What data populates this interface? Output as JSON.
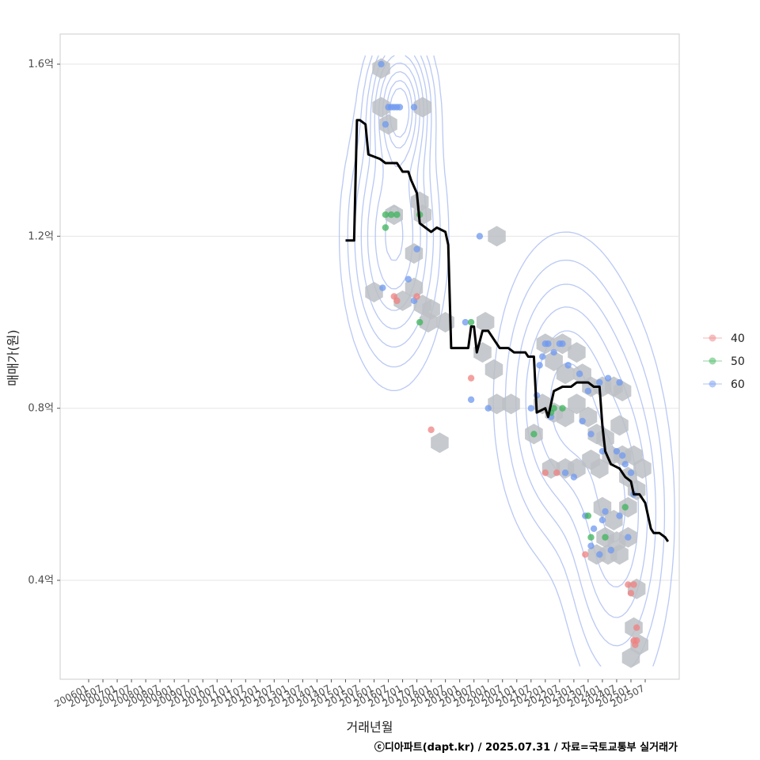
{
  "chart_data": {
    "type": "scatter",
    "xlabel": "거래년월",
    "ylabel": "매매가(원)",
    "caption": "ⓒ디아파트(dapt.kr) / 2025.07.31 / 자료=국토교통부 실거래가",
    "x_ticks": [
      "200601",
      "200607",
      "200701",
      "200707",
      "200801",
      "200807",
      "200901",
      "200907",
      "201001",
      "201007",
      "201101",
      "201107",
      "201201",
      "201207",
      "201301",
      "201307",
      "201401",
      "201407",
      "201501",
      "201507",
      "201601",
      "201607",
      "201701",
      "201707",
      "201801",
      "201807",
      "201901",
      "201907",
      "202001",
      "202007",
      "202101",
      "202107",
      "202201",
      "202207",
      "202301",
      "202307",
      "202401",
      "202407",
      "202501",
      "202507"
    ],
    "y_ticks": [
      {
        "value": 0.4,
        "label": "0.4억"
      },
      {
        "value": 0.8,
        "label": "0.8억"
      },
      {
        "value": 1.2,
        "label": "1.2억"
      },
      {
        "value": 1.6,
        "label": "1.6억"
      }
    ],
    "ylim": [
      0.17,
      1.67
    ],
    "grid": true,
    "legend_position": "right",
    "colors": {
      "40": "#f08080",
      "50": "#3cb35a",
      "60": "#6f98ef",
      "line": "#000000",
      "hex": "#bcc0c4",
      "contour": "#aebff2"
    },
    "legend": [
      {
        "key": "40",
        "label": "40",
        "color": "#f08080"
      },
      {
        "key": "50",
        "label": "50",
        "color": "#3cb35a"
      },
      {
        "key": "60",
        "label": "60",
        "color": "#6f98ef"
      }
    ],
    "series": [
      {
        "group": "60",
        "points": [
          [
            2016.25,
            1.6
          ],
          [
            2016.5,
            1.5
          ],
          [
            2016.6,
            1.5
          ],
          [
            2016.7,
            1.5
          ],
          [
            2016.8,
            1.5
          ],
          [
            2016.9,
            1.5
          ],
          [
            2017.4,
            1.5
          ],
          [
            2016.4,
            1.46
          ],
          [
            2016.3,
            1.08
          ],
          [
            2017.2,
            1.1
          ],
          [
            2017.5,
            1.17
          ],
          [
            2017.4,
            1.05
          ],
          [
            2019.7,
            1.2
          ],
          [
            2019.2,
            1.0
          ],
          [
            2019.4,
            0.82
          ],
          [
            2020.0,
            0.8
          ],
          [
            2021.5,
            0.8
          ],
          [
            2021.7,
            0.83
          ],
          [
            2021.8,
            0.9
          ],
          [
            2021.9,
            0.92
          ],
          [
            2022.0,
            0.95
          ],
          [
            2022.1,
            0.95
          ],
          [
            2022.3,
            0.93
          ],
          [
            2022.5,
            0.95
          ],
          [
            2022.6,
            0.95
          ],
          [
            2022.8,
            0.9
          ],
          [
            2023.2,
            0.88
          ],
          [
            2023.5,
            0.84
          ],
          [
            2023.9,
            0.86
          ],
          [
            2024.2,
            0.87
          ],
          [
            2024.6,
            0.86
          ],
          [
            2022.2,
            0.78
          ],
          [
            2023.3,
            0.77
          ],
          [
            2023.6,
            0.74
          ],
          [
            2024.0,
            0.7
          ],
          [
            2024.5,
            0.7
          ],
          [
            2024.7,
            0.69
          ],
          [
            2024.8,
            0.67
          ],
          [
            2025.0,
            0.65
          ],
          [
            2025.1,
            0.6
          ],
          [
            2022.7,
            0.65
          ],
          [
            2023.0,
            0.64
          ],
          [
            2023.4,
            0.55
          ],
          [
            2023.7,
            0.52
          ],
          [
            2024.0,
            0.54
          ],
          [
            2024.1,
            0.56
          ],
          [
            2024.3,
            0.47
          ],
          [
            2024.6,
            0.55
          ],
          [
            2024.9,
            0.5
          ],
          [
            2023.6,
            0.48
          ],
          [
            2023.9,
            0.46
          ]
        ]
      },
      {
        "group": "50",
        "points": [
          [
            2016.4,
            1.25
          ],
          [
            2016.6,
            1.25
          ],
          [
            2016.8,
            1.25
          ],
          [
            2016.4,
            1.22
          ],
          [
            2017.6,
            1.25
          ],
          [
            2017.6,
            1.0
          ],
          [
            2019.4,
            1.0
          ],
          [
            2021.6,
            0.74
          ],
          [
            2022.2,
            0.79
          ],
          [
            2022.3,
            0.8
          ],
          [
            2022.6,
            0.8
          ],
          [
            2023.5,
            0.55
          ],
          [
            2023.6,
            0.5
          ],
          [
            2024.1,
            0.5
          ],
          [
            2024.8,
            0.57
          ]
        ]
      },
      {
        "group": "40",
        "points": [
          [
            2016.7,
            1.06
          ],
          [
            2016.8,
            1.05
          ],
          [
            2017.5,
            1.06
          ],
          [
            2018.0,
            0.75
          ],
          [
            2019.4,
            0.87
          ],
          [
            2022.0,
            0.65
          ],
          [
            2022.4,
            0.65
          ],
          [
            2023.4,
            0.46
          ],
          [
            2024.9,
            0.39
          ],
          [
            2025.1,
            0.39
          ],
          [
            2025.0,
            0.37
          ],
          [
            2025.2,
            0.29
          ],
          [
            2025.1,
            0.26
          ],
          [
            2025.2,
            0.26
          ],
          [
            2025.15,
            0.25
          ]
        ]
      }
    ],
    "trend_line": [
      [
        2015.0,
        1.19
      ],
      [
        2015.3,
        1.19
      ],
      [
        2015.4,
        1.47
      ],
      [
        2015.5,
        1.47
      ],
      [
        2015.7,
        1.46
      ],
      [
        2015.8,
        1.39
      ],
      [
        2016.2,
        1.38
      ],
      [
        2016.4,
        1.37
      ],
      [
        2016.8,
        1.37
      ],
      [
        2017.0,
        1.35
      ],
      [
        2017.2,
        1.35
      ],
      [
        2017.3,
        1.33
      ],
      [
        2017.5,
        1.3
      ],
      [
        2017.6,
        1.23
      ],
      [
        2017.8,
        1.22
      ],
      [
        2018.0,
        1.21
      ],
      [
        2018.2,
        1.22
      ],
      [
        2018.5,
        1.21
      ],
      [
        2018.6,
        1.18
      ],
      [
        2018.7,
        0.94
      ],
      [
        2019.0,
        0.94
      ],
      [
        2019.3,
        0.94
      ],
      [
        2019.4,
        0.99
      ],
      [
        2019.5,
        0.99
      ],
      [
        2019.6,
        0.93
      ],
      [
        2019.8,
        0.98
      ],
      [
        2020.0,
        0.98
      ],
      [
        2020.2,
        0.96
      ],
      [
        2020.4,
        0.94
      ],
      [
        2020.7,
        0.94
      ],
      [
        2020.9,
        0.93
      ],
      [
        2021.3,
        0.93
      ],
      [
        2021.4,
        0.92
      ],
      [
        2021.6,
        0.92
      ],
      [
        2021.7,
        0.79
      ],
      [
        2022.0,
        0.8
      ],
      [
        2022.1,
        0.78
      ],
      [
        2022.3,
        0.84
      ],
      [
        2022.6,
        0.85
      ],
      [
        2022.9,
        0.85
      ],
      [
        2023.1,
        0.86
      ],
      [
        2023.5,
        0.86
      ],
      [
        2023.7,
        0.85
      ],
      [
        2023.9,
        0.85
      ],
      [
        2024.0,
        0.76
      ],
      [
        2024.1,
        0.7
      ],
      [
        2024.3,
        0.67
      ],
      [
        2024.6,
        0.66
      ],
      [
        2024.8,
        0.64
      ],
      [
        2025.0,
        0.63
      ],
      [
        2025.1,
        0.6
      ],
      [
        2025.3,
        0.6
      ],
      [
        2025.5,
        0.58
      ],
      [
        2025.6,
        0.55
      ],
      [
        2025.7,
        0.52
      ],
      [
        2025.8,
        0.51
      ],
      [
        2026.0,
        0.51
      ],
      [
        2026.2,
        0.5
      ],
      [
        2026.3,
        0.49
      ]
    ],
    "hex_bins": [
      [
        2016.25,
        1.59
      ],
      [
        2016.25,
        1.5
      ],
      [
        2016.5,
        1.46
      ],
      [
        2017.7,
        1.5
      ],
      [
        2016.7,
        1.25
      ],
      [
        2017.6,
        1.28
      ],
      [
        2017.7,
        1.25
      ],
      [
        2017.4,
        1.16
      ],
      [
        2016.0,
        1.07
      ],
      [
        2017.0,
        1.05
      ],
      [
        2017.4,
        1.08
      ],
      [
        2017.7,
        1.04
      ],
      [
        2018.0,
        1.03
      ],
      [
        2018.5,
        1.0
      ],
      [
        2017.9,
        1.0
      ],
      [
        2018.3,
        0.72
      ],
      [
        2020.3,
        1.2
      ],
      [
        2019.9,
        1.0
      ],
      [
        2019.8,
        0.93
      ],
      [
        2020.2,
        0.89
      ],
      [
        2020.3,
        0.81
      ],
      [
        2020.8,
        0.81
      ],
      [
        2021.6,
        0.74
      ],
      [
        2022.0,
        0.95
      ],
      [
        2022.6,
        0.95
      ],
      [
        2022.3,
        0.91
      ],
      [
        2022.7,
        0.88
      ],
      [
        2023.1,
        0.93
      ],
      [
        2023.3,
        0.88
      ],
      [
        2023.6,
        0.85
      ],
      [
        2024.0,
        0.85
      ],
      [
        2024.4,
        0.85
      ],
      [
        2024.7,
        0.84
      ],
      [
        2021.9,
        0.81
      ],
      [
        2022.3,
        0.79
      ],
      [
        2022.7,
        0.78
      ],
      [
        2023.1,
        0.81
      ],
      [
        2023.5,
        0.78
      ],
      [
        2023.8,
        0.74
      ],
      [
        2024.1,
        0.73
      ],
      [
        2024.6,
        0.76
      ],
      [
        2022.2,
        0.66
      ],
      [
        2022.7,
        0.66
      ],
      [
        2023.1,
        0.66
      ],
      [
        2023.6,
        0.68
      ],
      [
        2023.9,
        0.66
      ],
      [
        2024.3,
        0.69
      ],
      [
        2024.7,
        0.69
      ],
      [
        2025.1,
        0.69
      ],
      [
        2025.4,
        0.66
      ],
      [
        2024.9,
        0.64
      ],
      [
        2025.2,
        0.61
      ],
      [
        2024.0,
        0.57
      ],
      [
        2024.4,
        0.54
      ],
      [
        2024.9,
        0.57
      ],
      [
        2024.1,
        0.5
      ],
      [
        2024.5,
        0.49
      ],
      [
        2024.9,
        0.5
      ],
      [
        2023.8,
        0.46
      ],
      [
        2024.2,
        0.46
      ],
      [
        2024.6,
        0.46
      ],
      [
        2025.2,
        0.38
      ],
      [
        2025.1,
        0.29
      ],
      [
        2025.3,
        0.25
      ],
      [
        2025.0,
        0.22
      ]
    ],
    "contour_centers": [
      {
        "x": 2016.9,
        "y": 1.5,
        "sx": 0.55,
        "sy": 0.085,
        "w": 1.0
      },
      {
        "x": 2016.7,
        "y": 1.2,
        "sx": 0.8,
        "sy": 0.15,
        "w": 0.7
      },
      {
        "x": 2022.7,
        "y": 0.82,
        "sx": 1.1,
        "sy": 0.17,
        "w": 0.55
      },
      {
        "x": 2024.5,
        "y": 0.55,
        "sx": 0.9,
        "sy": 0.2,
        "w": 0.5
      }
    ]
  }
}
